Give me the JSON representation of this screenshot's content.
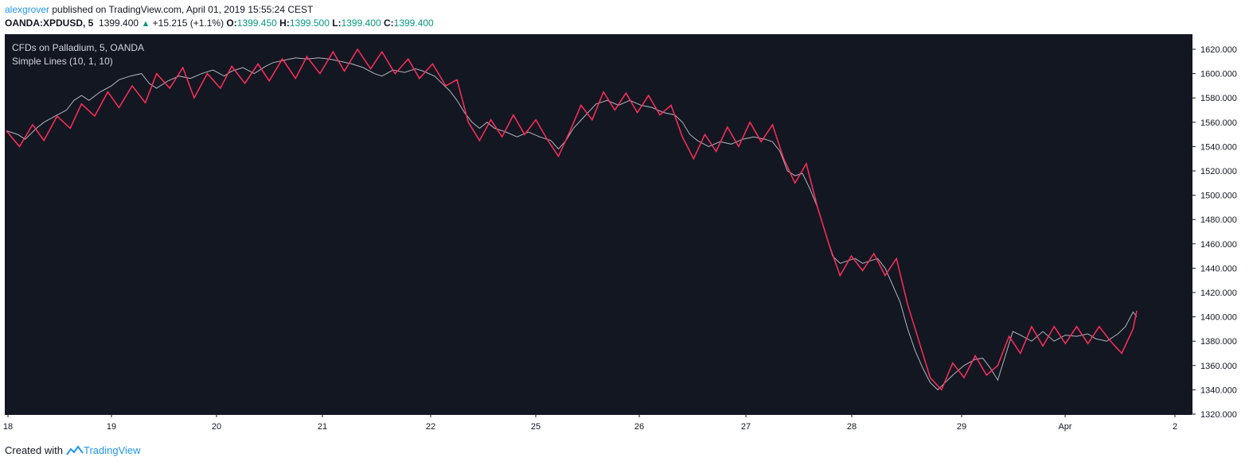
{
  "header": {
    "author": "alexgrover",
    "published": "published on TradingView.com, April 01, 2019 15:55:24 CEST",
    "symbol": "OANDA:XPDUSD, 5",
    "last": "1399.400",
    "change": "+15.215 (+1.1%)",
    "o_label": "O:",
    "o_value": "1399.450",
    "h_label": "H:",
    "h_value": "1399.500",
    "l_label": "L:",
    "l_value": "1399.400",
    "c_label": "C:",
    "c_value": "1399.400"
  },
  "legend": {
    "title": "CFDs on Palladium, 5, OANDA",
    "indicator": "Simple Lines (10, 1, 10)"
  },
  "footer": {
    "created_with": "Created with",
    "brand": "TradingView"
  },
  "colors": {
    "background": "#131722",
    "price": "#b2b5be",
    "indicator": "#ff2d5a",
    "axis_text": "#131722",
    "accent": "#2196f3",
    "up": "#089981"
  },
  "chart_data": {
    "type": "line",
    "title": "CFDs on Palladium, 5, OANDA",
    "ylim": [
      1320,
      1620
    ],
    "y_ticks": [
      "1620.000",
      "1600.000",
      "1580.000",
      "1560.000",
      "1540.000",
      "1520.000",
      "1500.000",
      "1480.000",
      "1460.000",
      "1440.000",
      "1420.000",
      "1400.000",
      "1380.000",
      "1360.000",
      "1340.000",
      "1320.000"
    ],
    "x_ticks": [
      "18",
      "19",
      "20",
      "21",
      "22",
      "25",
      "26",
      "27",
      "28",
      "29",
      "Apr",
      "2"
    ],
    "grid": false,
    "series": [
      {
        "values": [
          [
            0,
            1553
          ],
          [
            0.3,
            1550
          ],
          [
            0.5,
            1546
          ],
          [
            0.8,
            1555
          ],
          [
            1.0,
            1560
          ],
          [
            1.3,
            1565
          ],
          [
            1.6,
            1570
          ],
          [
            1.8,
            1578
          ],
          [
            2.0,
            1582
          ],
          [
            2.2,
            1578
          ],
          [
            2.5,
            1585
          ],
          [
            2.8,
            1590
          ],
          [
            3.0,
            1595
          ],
          [
            3.3,
            1598
          ],
          [
            3.6,
            1600
          ],
          [
            3.8,
            1592
          ],
          [
            4.0,
            1588
          ],
          [
            4.3,
            1594
          ],
          [
            4.6,
            1598
          ],
          [
            4.9,
            1596
          ],
          [
            5.2,
            1600
          ],
          [
            5.5,
            1603
          ],
          [
            5.8,
            1598
          ],
          [
            6.0,
            1602
          ],
          [
            6.3,
            1605
          ],
          [
            6.6,
            1600
          ],
          [
            6.9,
            1606
          ],
          [
            7.1,
            1609
          ],
          [
            7.4,
            1611
          ],
          [
            7.7,
            1613
          ],
          [
            8.0,
            1612
          ],
          [
            8.3,
            1613
          ],
          [
            8.6,
            1612
          ],
          [
            8.9,
            1610
          ],
          [
            9.2,
            1608
          ],
          [
            9.5,
            1605
          ],
          [
            9.8,
            1600
          ],
          [
            10.0,
            1598
          ],
          [
            10.3,
            1603
          ],
          [
            10.6,
            1601
          ],
          [
            10.9,
            1604
          ],
          [
            11.1,
            1602
          ],
          [
            11.4,
            1598
          ],
          [
            11.6,
            1592
          ],
          [
            11.8,
            1586
          ],
          [
            12.0,
            1578
          ],
          [
            12.2,
            1568
          ],
          [
            12.4,
            1560
          ],
          [
            12.6,
            1555
          ],
          [
            12.8,
            1560
          ],
          [
            13.0,
            1555
          ],
          [
            13.3,
            1552
          ],
          [
            13.6,
            1548
          ],
          [
            13.9,
            1552
          ],
          [
            14.2,
            1548
          ],
          [
            14.5,
            1545
          ],
          [
            14.7,
            1538
          ],
          [
            14.9,
            1545
          ],
          [
            15.1,
            1555
          ],
          [
            15.4,
            1565
          ],
          [
            15.7,
            1575
          ],
          [
            16.0,
            1578
          ],
          [
            16.3,
            1574
          ],
          [
            16.6,
            1578
          ],
          [
            16.9,
            1574
          ],
          [
            17.2,
            1572
          ],
          [
            17.5,
            1568
          ],
          [
            17.8,
            1566
          ],
          [
            18.0,
            1560
          ],
          [
            18.2,
            1550
          ],
          [
            18.4,
            1545
          ],
          [
            18.7,
            1540
          ],
          [
            19.0,
            1544
          ],
          [
            19.3,
            1542
          ],
          [
            19.6,
            1546
          ],
          [
            19.9,
            1548
          ],
          [
            20.2,
            1546
          ],
          [
            20.4,
            1544
          ],
          [
            20.6,
            1536
          ],
          [
            20.8,
            1520
          ],
          [
            21.0,
            1516
          ],
          [
            21.2,
            1518
          ],
          [
            21.4,
            1505
          ],
          [
            21.6,
            1490
          ],
          [
            21.8,
            1470
          ],
          [
            22.0,
            1450
          ],
          [
            22.2,
            1444
          ],
          [
            22.4,
            1446
          ],
          [
            22.6,
            1448
          ],
          [
            22.8,
            1444
          ],
          [
            23.0,
            1446
          ],
          [
            23.2,
            1448
          ],
          [
            23.4,
            1440
          ],
          [
            23.6,
            1426
          ],
          [
            23.8,
            1412
          ],
          [
            24.0,
            1390
          ],
          [
            24.2,
            1372
          ],
          [
            24.4,
            1358
          ],
          [
            24.6,
            1346
          ],
          [
            24.8,
            1340
          ],
          [
            25.0,
            1346
          ],
          [
            25.2,
            1352
          ],
          [
            25.5,
            1360
          ],
          [
            25.8,
            1365
          ],
          [
            26.0,
            1366
          ],
          [
            26.2,
            1358
          ],
          [
            26.4,
            1348
          ],
          [
            26.6,
            1368
          ],
          [
            26.8,
            1388
          ],
          [
            27.0,
            1385
          ],
          [
            27.3,
            1380
          ],
          [
            27.6,
            1388
          ],
          [
            27.9,
            1380
          ],
          [
            28.2,
            1385
          ],
          [
            28.5,
            1384
          ],
          [
            28.8,
            1386
          ],
          [
            29.0,
            1382
          ],
          [
            29.3,
            1380
          ],
          [
            29.6,
            1386
          ],
          [
            29.8,
            1392
          ],
          [
            30.0,
            1404
          ],
          [
            30.1,
            1400
          ]
        ]
      },
      {
        "values": [
          [
            0,
            1553
          ],
          [
            0.35,
            1540
          ],
          [
            0.7,
            1558
          ],
          [
            1.0,
            1545
          ],
          [
            1.35,
            1565
          ],
          [
            1.7,
            1555
          ],
          [
            2.0,
            1575
          ],
          [
            2.35,
            1565
          ],
          [
            2.7,
            1585
          ],
          [
            3.0,
            1572
          ],
          [
            3.35,
            1590
          ],
          [
            3.7,
            1576
          ],
          [
            4.0,
            1600
          ],
          [
            4.35,
            1588
          ],
          [
            4.7,
            1605
          ],
          [
            5.0,
            1580
          ],
          [
            5.35,
            1600
          ],
          [
            5.7,
            1588
          ],
          [
            6.0,
            1606
          ],
          [
            6.35,
            1592
          ],
          [
            6.7,
            1608
          ],
          [
            7.0,
            1594
          ],
          [
            7.35,
            1612
          ],
          [
            7.7,
            1596
          ],
          [
            8.0,
            1614
          ],
          [
            8.35,
            1600
          ],
          [
            8.7,
            1618
          ],
          [
            9.0,
            1602
          ],
          [
            9.35,
            1620
          ],
          [
            9.7,
            1604
          ],
          [
            10.0,
            1618
          ],
          [
            10.35,
            1600
          ],
          [
            10.7,
            1612
          ],
          [
            11.0,
            1596
          ],
          [
            11.35,
            1608
          ],
          [
            11.7,
            1590
          ],
          [
            12.0,
            1595
          ],
          [
            12.3,
            1560
          ],
          [
            12.6,
            1545
          ],
          [
            12.9,
            1562
          ],
          [
            13.2,
            1548
          ],
          [
            13.5,
            1566
          ],
          [
            13.8,
            1550
          ],
          [
            14.1,
            1562
          ],
          [
            14.4,
            1546
          ],
          [
            14.7,
            1532
          ],
          [
            15.0,
            1552
          ],
          [
            15.3,
            1574
          ],
          [
            15.6,
            1562
          ],
          [
            15.9,
            1585
          ],
          [
            16.2,
            1570
          ],
          [
            16.5,
            1584
          ],
          [
            16.8,
            1568
          ],
          [
            17.1,
            1582
          ],
          [
            17.4,
            1566
          ],
          [
            17.7,
            1574
          ],
          [
            18.0,
            1548
          ],
          [
            18.3,
            1530
          ],
          [
            18.6,
            1550
          ],
          [
            18.9,
            1536
          ],
          [
            19.2,
            1556
          ],
          [
            19.5,
            1540
          ],
          [
            19.8,
            1560
          ],
          [
            20.1,
            1544
          ],
          [
            20.4,
            1558
          ],
          [
            20.7,
            1530
          ],
          [
            21.0,
            1510
          ],
          [
            21.3,
            1526
          ],
          [
            21.6,
            1490
          ],
          [
            21.9,
            1460
          ],
          [
            22.2,
            1434
          ],
          [
            22.5,
            1450
          ],
          [
            22.8,
            1438
          ],
          [
            23.1,
            1452
          ],
          [
            23.4,
            1434
          ],
          [
            23.7,
            1448
          ],
          [
            24.0,
            1410
          ],
          [
            24.3,
            1380
          ],
          [
            24.6,
            1350
          ],
          [
            24.9,
            1340
          ],
          [
            25.2,
            1362
          ],
          [
            25.5,
            1350
          ],
          [
            25.8,
            1368
          ],
          [
            26.1,
            1352
          ],
          [
            26.4,
            1360
          ],
          [
            26.7,
            1384
          ],
          [
            27.0,
            1370
          ],
          [
            27.3,
            1392
          ],
          [
            27.6,
            1376
          ],
          [
            27.9,
            1392
          ],
          [
            28.2,
            1378
          ],
          [
            28.5,
            1392
          ],
          [
            28.8,
            1378
          ],
          [
            29.1,
            1392
          ],
          [
            29.4,
            1380
          ],
          [
            29.7,
            1370
          ],
          [
            30.0,
            1390
          ],
          [
            30.1,
            1405
          ]
        ]
      }
    ]
  }
}
